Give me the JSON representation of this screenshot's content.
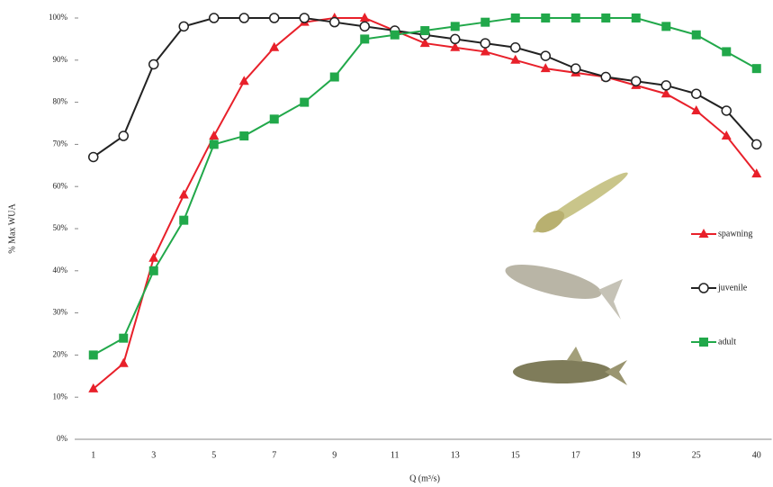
{
  "chart_data": {
    "type": "line",
    "x_label": "Q (m³/s)",
    "y_label": "% Max WUA",
    "categories": [
      "1",
      null,
      "3",
      null,
      "5",
      null,
      "7",
      null,
      "9",
      null,
      "11",
      null,
      "13",
      null,
      "15",
      null,
      "17",
      null,
      "19",
      null,
      "25",
      null,
      "40"
    ],
    "series": [
      {
        "name": "spawning",
        "color": "#e8202a",
        "marker": "triangle",
        "values": [
          12,
          18,
          43,
          58,
          72,
          85,
          93,
          99,
          100,
          100,
          97,
          94,
          93,
          92,
          90,
          88,
          87,
          86,
          84,
          82,
          78,
          72,
          63
        ]
      },
      {
        "name": "juvenile",
        "color": "#222222",
        "marker": "circle-open",
        "values": [
          67,
          72,
          89,
          98,
          100,
          100,
          100,
          100,
          99,
          98,
          97,
          96,
          95,
          94,
          93,
          91,
          88,
          86,
          85,
          84,
          82,
          78,
          70
        ]
      },
      {
        "name": "adult",
        "color": "#21a84a",
        "marker": "square",
        "values": [
          20,
          24,
          40,
          52,
          70,
          72,
          76,
          80,
          86,
          95,
          96,
          97,
          98,
          99,
          100,
          100,
          100,
          100,
          100,
          98,
          96,
          92,
          88
        ]
      }
    ],
    "ylim": [
      0,
      100
    ],
    "yticks": [
      {
        "value": 0,
        "label": "0%"
      },
      {
        "value": 10,
        "label": "10%"
      },
      {
        "value": 20,
        "label": "20%"
      },
      {
        "value": 30,
        "label": "30%"
      },
      {
        "value": 40,
        "label": "40%"
      },
      {
        "value": 50,
        "label": "50%"
      },
      {
        "value": 60,
        "label": "60%"
      },
      {
        "value": 70,
        "label": "70%"
      },
      {
        "value": 80,
        "label": "80%"
      },
      {
        "value": 90,
        "label": "90%"
      },
      {
        "value": 100,
        "label": "100%"
      }
    ],
    "grid": false
  }
}
